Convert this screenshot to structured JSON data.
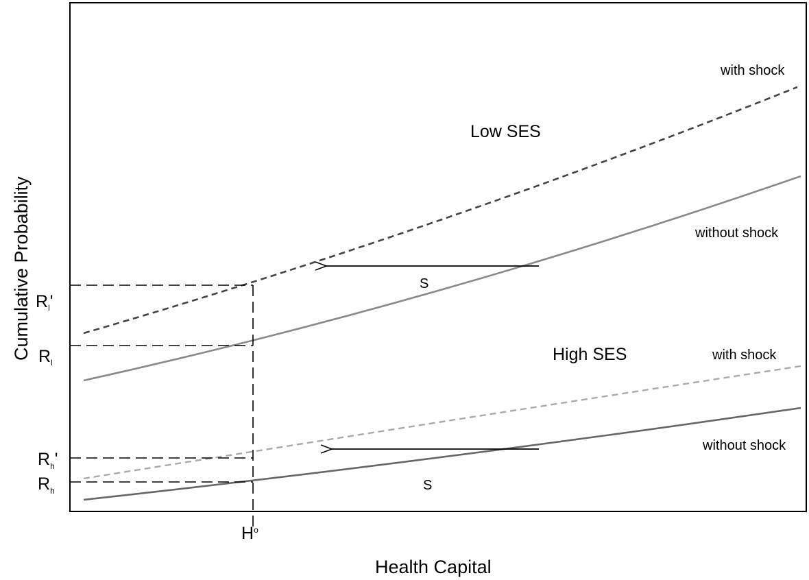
{
  "axes": {
    "x_label": "Health Capital",
    "y_label": "Cumulative Probability",
    "x_tick": {
      "main": "H",
      "sup": "o"
    }
  },
  "y_ticks": [
    {
      "id": "rl-prime",
      "main": "R",
      "sub": "l",
      "suffix": "'"
    },
    {
      "id": "rl",
      "main": "R",
      "sub": "l",
      "suffix": ""
    },
    {
      "id": "rh-prime",
      "main": "R",
      "sub": "h",
      "suffix": "'"
    },
    {
      "id": "rh",
      "main": "R",
      "sub": "h",
      "suffix": ""
    }
  ],
  "groups": {
    "low": "Low SES",
    "high": "High SES"
  },
  "curve_labels": {
    "low_with": "with shock",
    "low_without": "without shock",
    "high_with": "with shock",
    "high_without": "without shock"
  },
  "shift_labels": {
    "low": "S",
    "high": "S"
  },
  "colors": {
    "low_with_shock": "#444444",
    "low_without_shock": "#8a8a8a",
    "high_with_shock": "#aaaaaa",
    "high_without_shock": "#666666",
    "axis": "#000000",
    "guide": "#000000"
  }
}
